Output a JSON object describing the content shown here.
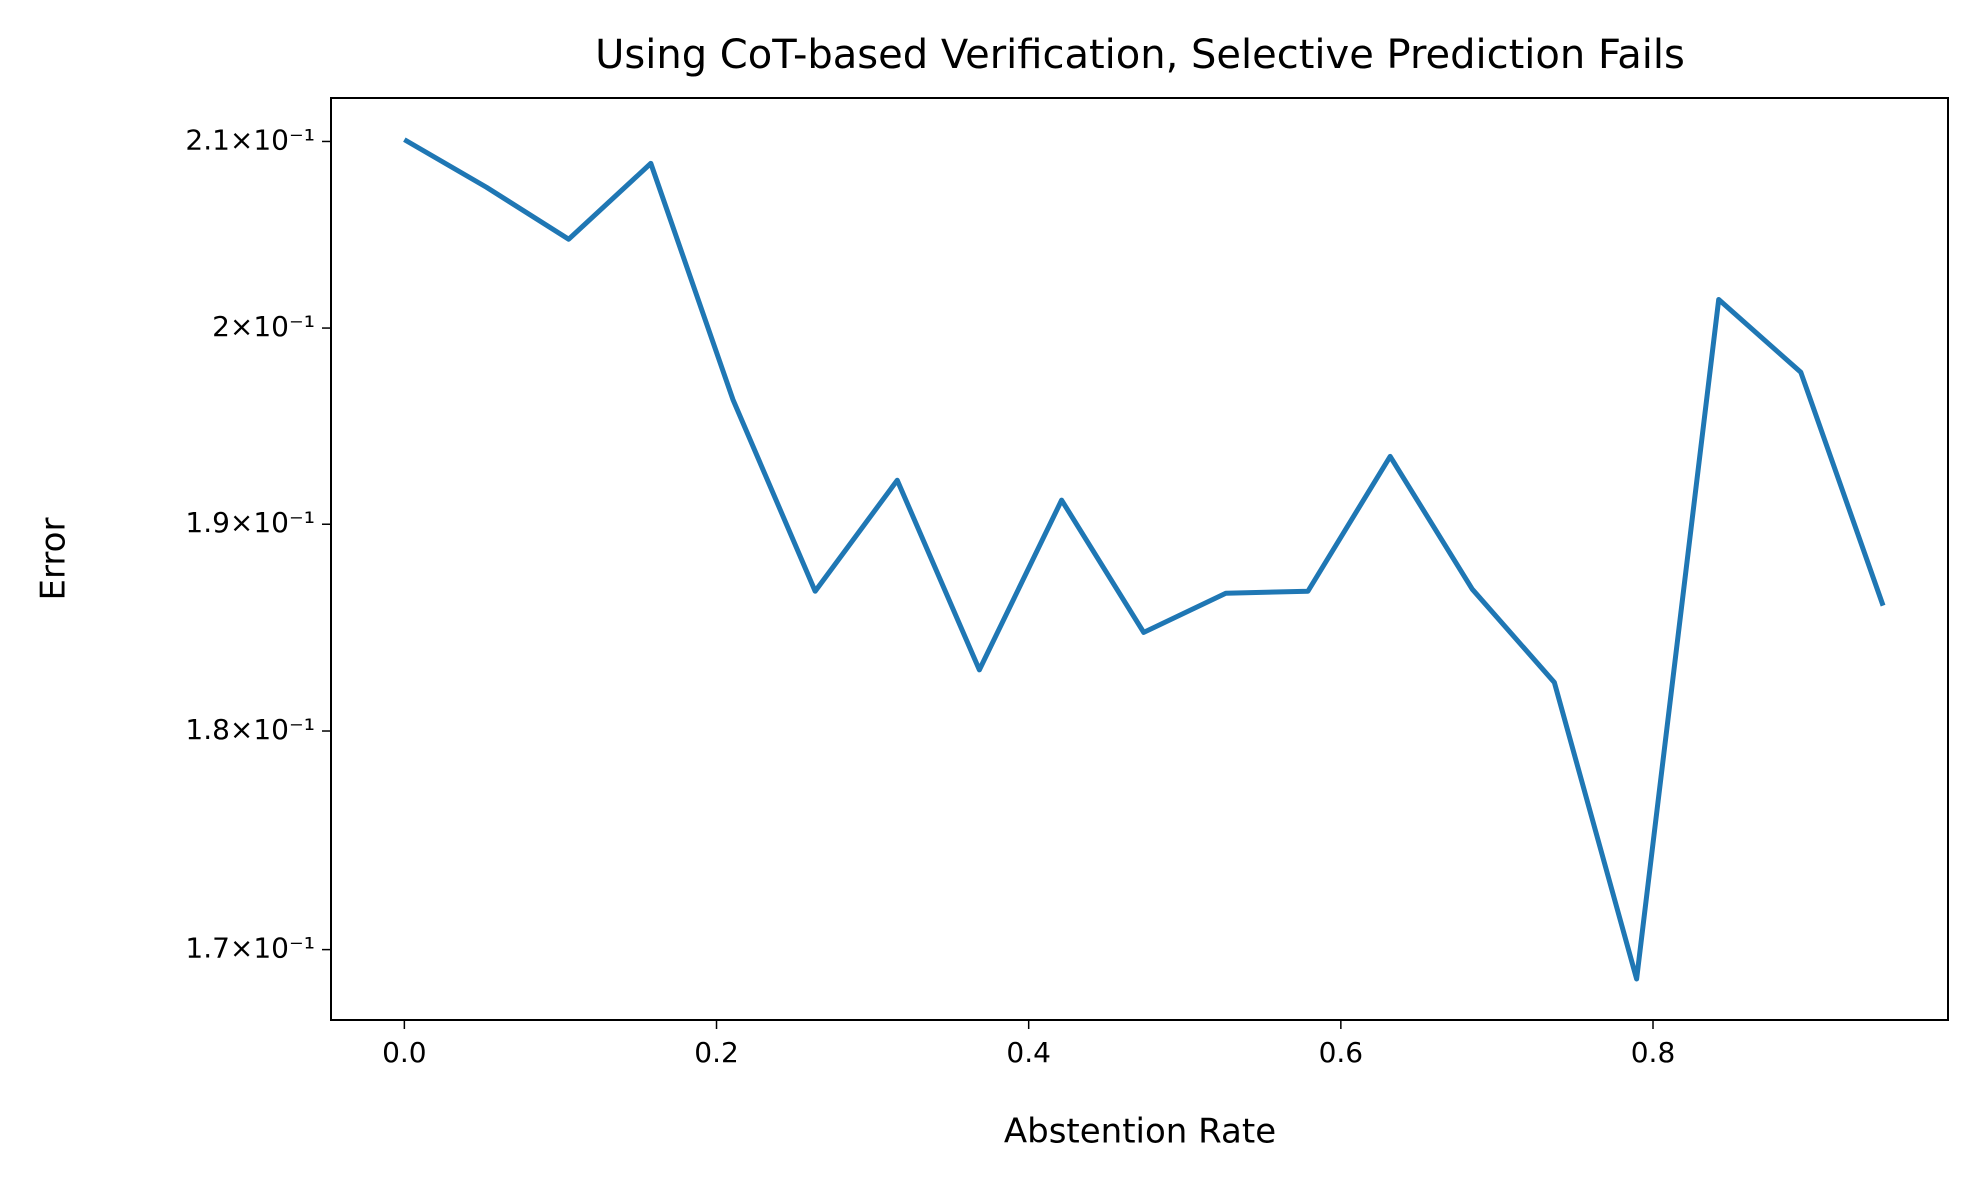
{
  "chart_data": {
    "type": "line",
    "title": "Using CoT-based Verification, Selective Prediction Fails",
    "x_label": "Abstention Rate",
    "y_label": "Error",
    "x": [
      0,
      0.0526,
      0.1053,
      0.1579,
      0.2105,
      0.2632,
      0.3158,
      0.3684,
      0.4211,
      0.4737,
      0.5263,
      0.5789,
      0.6316,
      0.6842,
      0.7368,
      0.7895,
      0.8421,
      0.8947,
      0.9474
    ],
    "series": [
      {
        "name": "Error",
        "color": "#1f77b4",
        "values": [
          0.2101,
          0.2075,
          0.2047,
          0.2088,
          0.1963,
          0.1867,
          0.1922,
          0.1829,
          0.1912,
          0.1847,
          0.1866,
          0.1867,
          0.1934,
          0.1868,
          0.1823,
          0.1687,
          0.2015,
          0.1977,
          0.186
        ]
      }
    ],
    "xlim": [
      -0.047,
      0.989
    ],
    "xticks": [
      {
        "value": 0,
        "label": "0.0"
      },
      0.2,
      0.4,
      0.6,
      0.8
    ],
    "ylim": [
      0.1669,
      0.2124
    ],
    "y_scale": "log",
    "yticks": [
      {
        "value": 0.17,
        "label": "1.7×10⁻¹"
      },
      {
        "value": 0.18,
        "label": "1.8×10⁻¹"
      },
      {
        "value": 0.19,
        "label": "1.9×10⁻¹"
      },
      {
        "value": 0.2,
        "label": "2×10⁻¹"
      },
      {
        "value": 0.21,
        "label": "2.1×10⁻¹"
      }
    ],
    "grid": false
  }
}
